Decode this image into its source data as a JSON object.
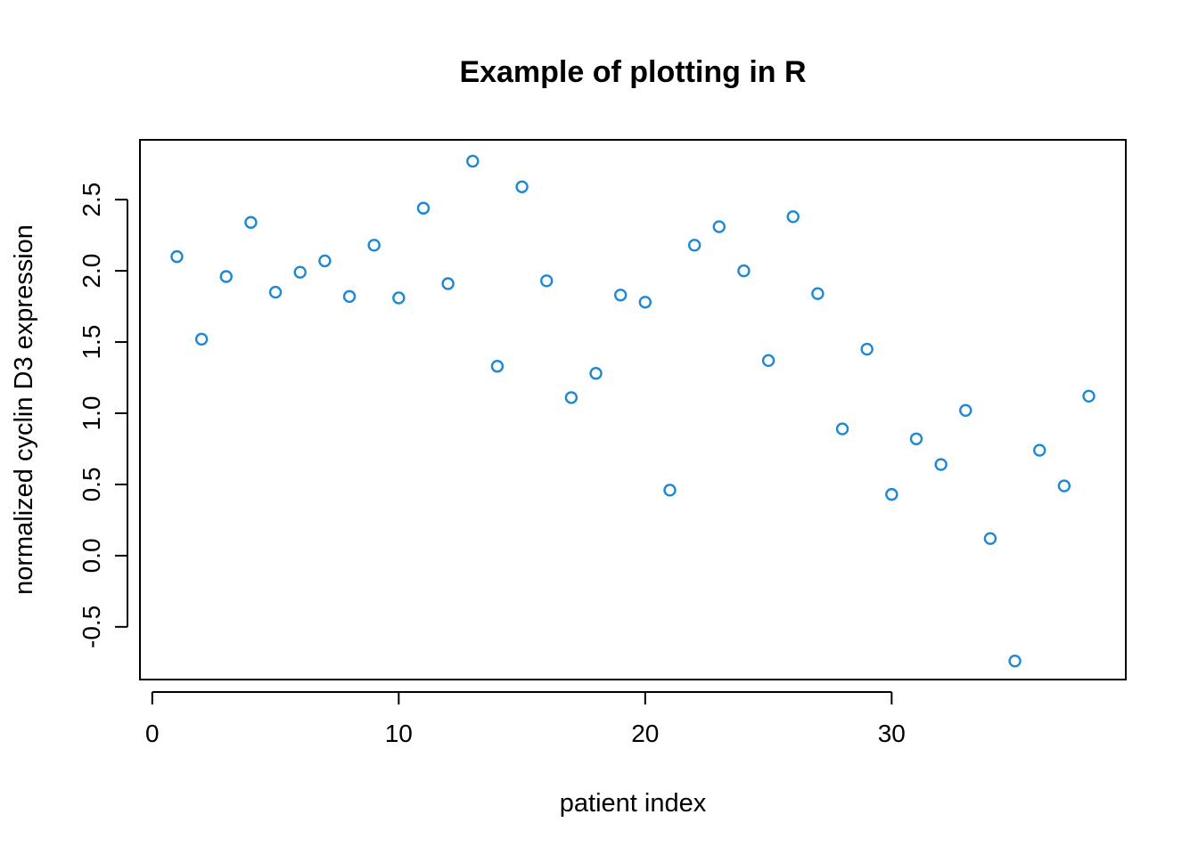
{
  "chart_data": {
    "type": "scatter",
    "title": "Example of plotting in R",
    "xlabel": "patient index",
    "ylabel": "normalized cyclin D3 expression",
    "x_ticks": [
      0,
      10,
      20,
      30
    ],
    "y_ticks": [
      -0.5,
      0.0,
      0.5,
      1.0,
      1.5,
      2.0,
      2.5
    ],
    "x_tick_labels": [
      "0",
      "10",
      "20",
      "30"
    ],
    "y_tick_labels": [
      "-0.5",
      "0.0",
      "0.5",
      "1.0",
      "1.5",
      "2.0",
      "2.5"
    ],
    "xlim": [
      -0.5,
      39.5
    ],
    "ylim": [
      -0.87,
      2.92
    ],
    "grid": false,
    "marker": "open-circle",
    "point_color": "#1e88d4",
    "series": [
      {
        "x": [
          1,
          2,
          3,
          4,
          5,
          6,
          7,
          8,
          9,
          10,
          11,
          12,
          13,
          14,
          15,
          16,
          17,
          18,
          19,
          20,
          21,
          22,
          23,
          24,
          25,
          26,
          27,
          28,
          29,
          30,
          31,
          32,
          33,
          34,
          35,
          36,
          37,
          38
        ],
        "y": [
          2.1,
          1.52,
          1.96,
          2.34,
          1.85,
          1.99,
          2.07,
          1.82,
          2.18,
          1.81,
          2.44,
          1.91,
          2.77,
          1.33,
          2.59,
          1.93,
          1.11,
          1.28,
          1.83,
          1.78,
          0.46,
          2.18,
          2.31,
          2.0,
          1.37,
          2.38,
          1.84,
          0.89,
          1.45,
          0.43,
          0.82,
          0.64,
          1.02,
          0.12,
          -0.74,
          0.74,
          0.49,
          1.12
        ]
      }
    ]
  }
}
